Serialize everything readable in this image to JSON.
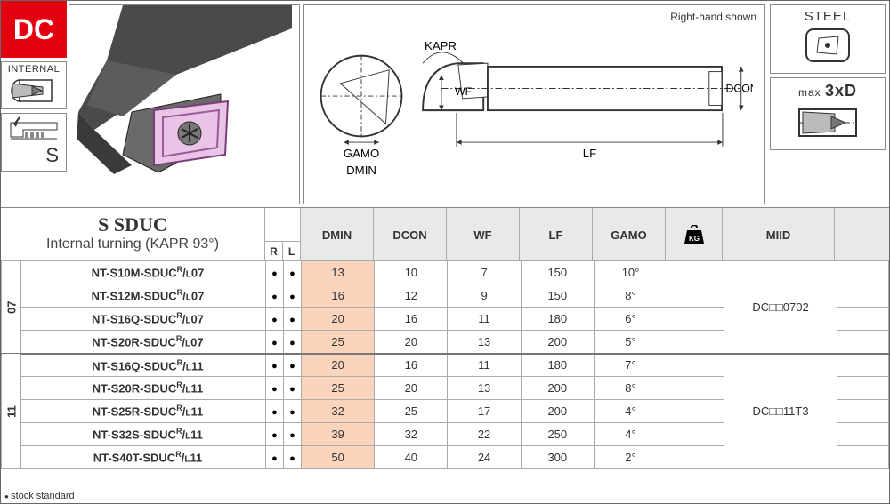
{
  "badge": "DC",
  "side": {
    "internal_label": "INTERNAL",
    "s_letter": "S"
  },
  "right": {
    "steel_label": "STEEL",
    "maxd_prefix": "max ",
    "maxd_value": "3xD"
  },
  "tech_labels": {
    "right_hand": "Right-hand shown",
    "kapr": "KAPR",
    "wf": "WF",
    "gamo": "GAMO",
    "dmin": "DMIN",
    "lf": "LF",
    "dcon": "DCON"
  },
  "title": {
    "name": "S SDUC",
    "sub": "Internal turning (KAPR 93°)"
  },
  "columns": {
    "r": "R",
    "l": "L",
    "dmin": "DMIN",
    "dcon": "DCON",
    "wf": "WF",
    "lf": "LF",
    "gamo": "GAMO",
    "miid": "MIID"
  },
  "groups": [
    {
      "code": "07",
      "miid": "DC□□0702",
      "rows": [
        {
          "pn": "NT-S10M-SDUC",
          "suf": "07",
          "r": true,
          "l": true,
          "dmin": "13",
          "dcon": "10",
          "wf": "7",
          "lf": "150",
          "gamo": "10°"
        },
        {
          "pn": "NT-S12M-SDUC",
          "suf": "07",
          "r": true,
          "l": true,
          "dmin": "16",
          "dcon": "12",
          "wf": "9",
          "lf": "150",
          "gamo": "8°"
        },
        {
          "pn": "NT-S16Q-SDUC",
          "suf": "07",
          "r": true,
          "l": true,
          "dmin": "20",
          "dcon": "16",
          "wf": "11",
          "lf": "180",
          "gamo": "6°"
        },
        {
          "pn": "NT-S20R-SDUC",
          "suf": "07",
          "r": true,
          "l": true,
          "dmin": "25",
          "dcon": "20",
          "wf": "13",
          "lf": "200",
          "gamo": "5°"
        }
      ]
    },
    {
      "code": "11",
      "miid": "DC□□11T3",
      "rows": [
        {
          "pn": "NT-S16Q-SDUC",
          "suf": "11",
          "r": true,
          "l": true,
          "dmin": "20",
          "dcon": "16",
          "wf": "11",
          "lf": "180",
          "gamo": "7°"
        },
        {
          "pn": "NT-S20R-SDUC",
          "suf": "11",
          "r": true,
          "l": true,
          "dmin": "25",
          "dcon": "20",
          "wf": "13",
          "lf": "200",
          "gamo": "8°"
        },
        {
          "pn": "NT-S25R-SDUC",
          "suf": "11",
          "r": true,
          "l": true,
          "dmin": "32",
          "dcon": "25",
          "wf": "17",
          "lf": "200",
          "gamo": "4°"
        },
        {
          "pn": "NT-S32S-SDUC",
          "suf": "11",
          "r": true,
          "l": true,
          "dmin": "39",
          "dcon": "32",
          "wf": "22",
          "lf": "250",
          "gamo": "4°"
        },
        {
          "pn": "NT-S40T-SDUC",
          "suf": "11",
          "r": true,
          "l": true,
          "dmin": "50",
          "dcon": "40",
          "wf": "24",
          "lf": "300",
          "gamo": "2°"
        }
      ]
    }
  ],
  "footnote": "stock standard",
  "colors": {
    "accent_red": "#e3000f",
    "dmin_highlight": "#fbd4bd",
    "header_grey": "#e9e9e9",
    "border": "#aaaaaa"
  }
}
